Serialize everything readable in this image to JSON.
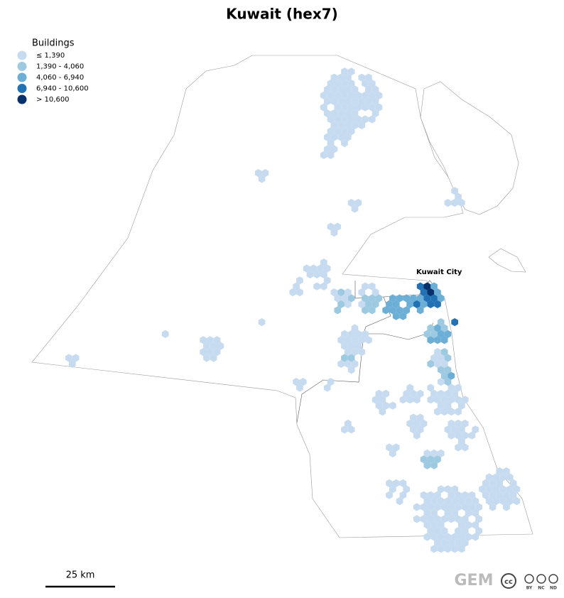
{
  "title": "Kuwait (hex7)",
  "legend": {
    "title": "Buildings",
    "items": [
      {
        "label": "≤ 1,390",
        "color": "#c6dbef"
      },
      {
        "label": "1,390 - 4,060",
        "color": "#9ecae1"
      },
      {
        "label": "4,060 - 6,940",
        "color": "#6baed6"
      },
      {
        "label": "6,940 - 10,600",
        "color": "#2171b5"
      },
      {
        "label": "> 10,600",
        "color": "#08306b"
      }
    ]
  },
  "places": {
    "city": "Kuwait City"
  },
  "scale_bar": "25 km",
  "footer": {
    "logo": "GEM",
    "cc": "cc",
    "license": [
      "BY",
      "NC",
      "ND"
    ]
  }
}
